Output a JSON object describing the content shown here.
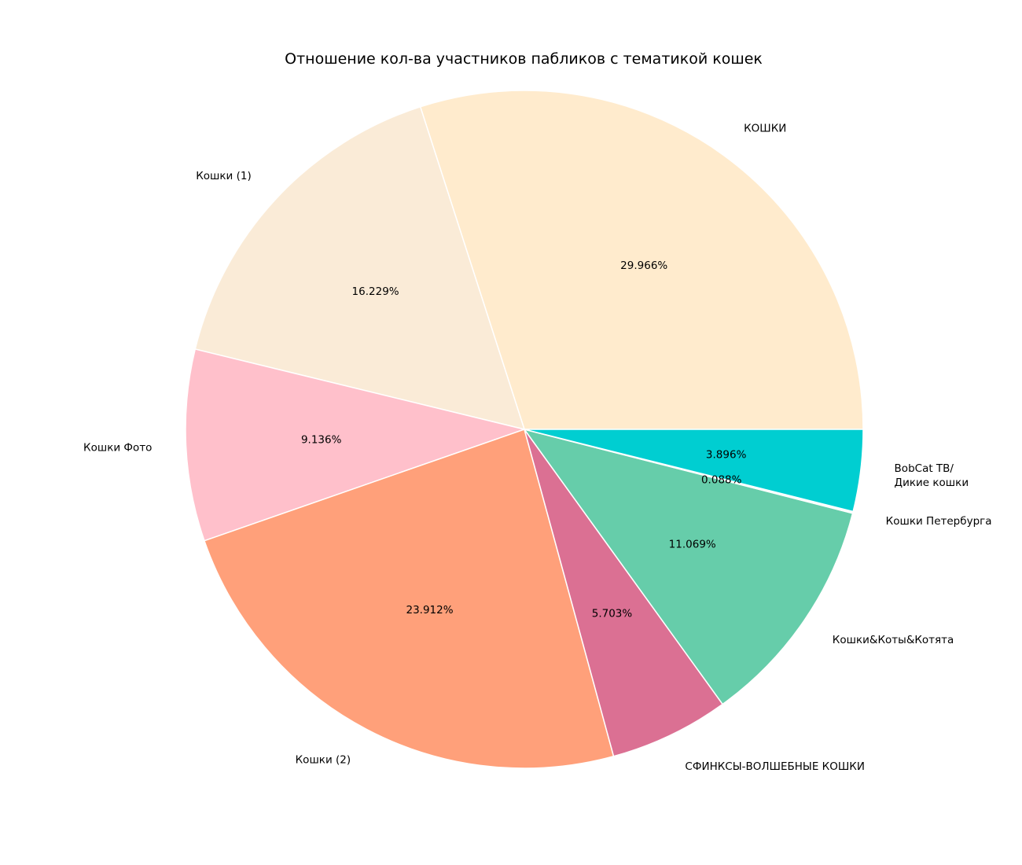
{
  "chart_data": {
    "type": "pie",
    "title": "Отношение кол-ва участников пабликов с тематикой кошек",
    "start_angle_deg": 0,
    "direction": "counterclockwise",
    "slices": [
      {
        "label": "КОШКИ",
        "value": 29.966,
        "pct_label": "29.966%",
        "color": "#FFEBCD"
      },
      {
        "label": "Кошки (1)",
        "value": 16.229,
        "pct_label": "16.229%",
        "color": "#FAEBD7"
      },
      {
        "label": "Кошки Фото",
        "value": 9.136,
        "pct_label": "9.136%",
        "color": "#FFC0CB"
      },
      {
        "label": "Кошки (2)",
        "value": 23.912,
        "pct_label": "23.912%",
        "color": "#FFA07A"
      },
      {
        "label": "СФИНКСЫ-ВОЛШЕБНЫЕ КОШКИ",
        "value": 5.703,
        "pct_label": "5.703%",
        "color": "#DB7093"
      },
      {
        "label": "Кошки&Коты&Котята",
        "value": 11.069,
        "pct_label": "11.069%",
        "color": "#66CDAA"
      },
      {
        "label": "Кошки Петербурга",
        "value": 0.088,
        "pct_label": "0.088%",
        "color": "#FFFFFF"
      },
      {
        "label": "BobCat ТВ/\nДикие кошки",
        "value": 3.896,
        "pct_label": "3.896%",
        "color": "#00CED1"
      }
    ]
  }
}
